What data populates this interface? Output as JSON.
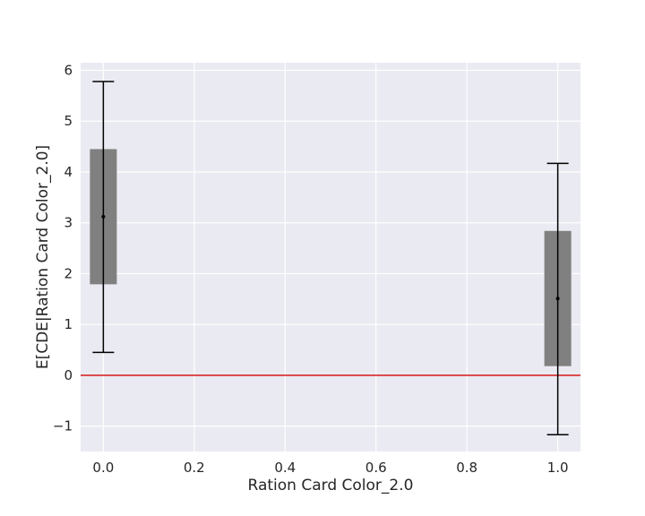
{
  "chart_data": {
    "type": "box-errorbar",
    "xlabel": "Ration Card Color_2.0",
    "ylabel": "E[CDE|Ration Card Color_2.0]",
    "xlim": [
      -0.05,
      1.05
    ],
    "ylim": [
      -1.5,
      6.15
    ],
    "xticks": [
      0.0,
      0.2,
      0.4,
      0.6,
      0.8,
      1.0
    ],
    "xtick_labels": [
      "0.0",
      "0.2",
      "0.4",
      "0.6",
      "0.8",
      "1.0"
    ],
    "yticks": [
      -1,
      0,
      1,
      2,
      3,
      4,
      5,
      6
    ],
    "ytick_labels": [
      "−1",
      "0",
      "1",
      "2",
      "3",
      "4",
      "5",
      "6"
    ],
    "grid": true,
    "background_color": "#eaeaf2",
    "reference_line": {
      "y": 0,
      "color": "#d62728"
    },
    "box_color": "#808080",
    "points": [
      {
        "x": 0.0,
        "mean": 3.12,
        "box_low": 1.79,
        "box_high": 4.45,
        "whisker_low": 0.45,
        "whisker_high": 5.78
      },
      {
        "x": 1.0,
        "mean": 1.51,
        "box_low": 0.18,
        "box_high": 2.84,
        "whisker_low": -1.17,
        "whisker_high": 4.17
      }
    ]
  }
}
